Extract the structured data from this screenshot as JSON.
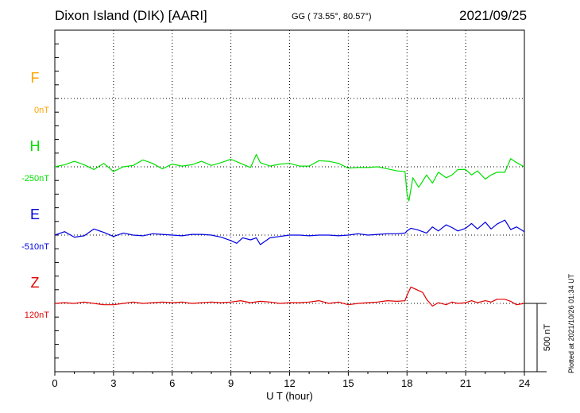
{
  "header": {
    "station": "Dixon Island (DIK)  [AARI]",
    "coords": "GG ( 73.55°,  80.57°)",
    "date": "2021/09/25"
  },
  "footer": {
    "plotted": "Plotted at 2021/10/26 01:34 UT"
  },
  "colors": {
    "F": "#ffa500",
    "H": "#00e000",
    "E": "#0000e0",
    "Z": "#e00000"
  },
  "chart_data": {
    "type": "line",
    "title": "Dixon Island (DIK)  [AARI]",
    "xlabel": "U T (hour)",
    "xlim": [
      0,
      24
    ],
    "xticks": [
      "0",
      "3",
      "6",
      "9",
      "12",
      "15",
      "18",
      "21",
      "24"
    ],
    "grid": true,
    "scale_bar": "500 nT",
    "series": [
      {
        "name": "F",
        "baseline_label": "0nT",
        "baseline_row": 1,
        "values": []
      },
      {
        "name": "H",
        "baseline_label": "-250nT",
        "baseline_row": 2,
        "x": [
          0,
          0.5,
          1,
          1.5,
          2,
          2.5,
          3,
          3.5,
          4,
          4.5,
          5,
          5.5,
          6,
          6.5,
          7,
          7.5,
          8,
          8.5,
          9,
          9.5,
          10,
          10.3,
          10.5,
          11,
          11.5,
          12,
          12.5,
          13,
          13.5,
          14,
          14.5,
          15,
          15.5,
          16,
          16.5,
          17,
          17.5,
          17.9,
          18.0,
          18.1,
          18.3,
          18.6,
          19,
          19.3,
          19.6,
          20,
          20.3,
          20.6,
          21,
          21.3,
          21.6,
          22,
          22.3,
          22.6,
          23,
          23.3,
          23.6,
          24
        ],
        "values": [
          0,
          15,
          40,
          15,
          -20,
          25,
          -35,
          0,
          10,
          50,
          25,
          -15,
          20,
          5,
          15,
          40,
          10,
          30,
          55,
          25,
          -5,
          90,
          30,
          5,
          20,
          25,
          5,
          5,
          45,
          40,
          25,
          -10,
          -5,
          -5,
          0,
          -15,
          -30,
          -35,
          -200,
          -250,
          -80,
          -150,
          -60,
          -120,
          -40,
          -80,
          -60,
          -20,
          -20,
          -60,
          -30,
          -90,
          -60,
          -40,
          -40,
          60,
          30,
          0
        ]
      },
      {
        "name": "E",
        "baseline_label": "-510nT",
        "baseline_row": 3,
        "x": [
          0,
          0.5,
          1,
          1.5,
          2,
          2.5,
          3,
          3.5,
          4,
          4.5,
          5,
          5.5,
          6,
          6.5,
          7,
          7.5,
          8,
          8.5,
          9,
          9.3,
          9.6,
          10,
          10.3,
          10.5,
          11,
          11.5,
          12,
          12.5,
          13,
          13.5,
          14,
          14.5,
          15,
          15.5,
          16,
          16.5,
          17,
          17.5,
          17.9,
          18.0,
          18.2,
          18.5,
          19,
          19.3,
          19.6,
          20,
          20.3,
          20.6,
          21,
          21.3,
          21.6,
          22,
          22.3,
          22.6,
          23,
          23.3,
          23.6,
          24
        ],
        "values": [
          0,
          25,
          -15,
          -5,
          45,
          20,
          -10,
          15,
          0,
          -5,
          10,
          5,
          0,
          -5,
          5,
          5,
          0,
          -15,
          -40,
          -60,
          -20,
          -35,
          -20,
          -70,
          -20,
          -10,
          0,
          0,
          -5,
          0,
          0,
          -5,
          0,
          10,
          0,
          5,
          10,
          10,
          15,
          30,
          50,
          40,
          15,
          60,
          30,
          75,
          55,
          30,
          50,
          85,
          45,
          95,
          45,
          80,
          110,
          40,
          60,
          25
        ]
      },
      {
        "name": "Z",
        "baseline_label": "120nT",
        "baseline_row": 4,
        "x": [
          0,
          0.5,
          1,
          1.5,
          2,
          2.5,
          3,
          3.5,
          4,
          4.5,
          5,
          5.5,
          6,
          6.5,
          7,
          7.5,
          8,
          8.5,
          9,
          9.5,
          10,
          10.5,
          11,
          11.5,
          12,
          12.5,
          13,
          13.5,
          14,
          14.5,
          15,
          15.5,
          16,
          16.5,
          17,
          17.5,
          17.9,
          18.0,
          18.2,
          18.5,
          18.8,
          19,
          19.3,
          19.6,
          20,
          20.3,
          20.6,
          21,
          21.3,
          21.6,
          22,
          22.3,
          22.6,
          23,
          23.3,
          23.6,
          24
        ],
        "values": [
          0,
          5,
          0,
          10,
          0,
          -10,
          -10,
          0,
          10,
          0,
          5,
          10,
          5,
          10,
          0,
          5,
          10,
          5,
          10,
          20,
          5,
          15,
          10,
          0,
          5,
          5,
          10,
          20,
          0,
          10,
          -10,
          0,
          5,
          10,
          20,
          15,
          20,
          60,
          120,
          100,
          80,
          30,
          -20,
          5,
          -10,
          10,
          0,
          5,
          20,
          5,
          20,
          10,
          30,
          30,
          15,
          -10,
          0
        ]
      }
    ]
  }
}
